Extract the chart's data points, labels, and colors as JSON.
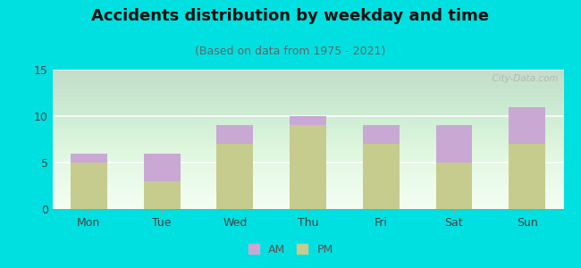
{
  "title": "Accidents distribution by weekday and time",
  "subtitle": "(Based on data from 1975 - 2021)",
  "categories": [
    "Mon",
    "Tue",
    "Wed",
    "Thu",
    "Fri",
    "Sat",
    "Sun"
  ],
  "pm_values": [
    5,
    3,
    7,
    9,
    7,
    5,
    7
  ],
  "am_values": [
    1,
    3,
    2,
    1,
    2,
    4,
    4
  ],
  "am_color": "#c9a8d4",
  "pm_color": "#c5cc8e",
  "background_color": "#00e0e0",
  "ylim": [
    0,
    15
  ],
  "yticks": [
    0,
    5,
    10,
    15
  ],
  "watermark": "  City-Data.com",
  "legend_am": "AM",
  "legend_pm": "PM",
  "title_fontsize": 13,
  "subtitle_fontsize": 9,
  "tick_fontsize": 9,
  "bar_width": 0.5
}
